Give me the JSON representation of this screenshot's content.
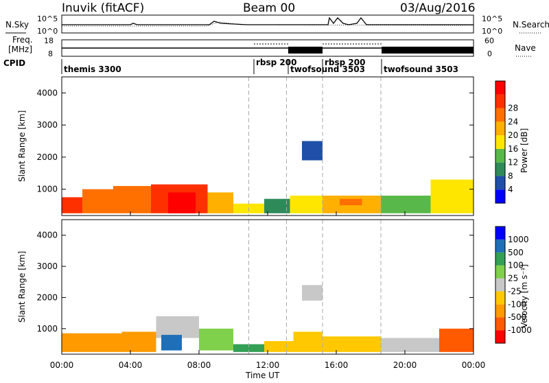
{
  "header": {
    "station": "Inuvik (fitACF)",
    "beam": "Beam 00",
    "date": "03/Aug/2016"
  },
  "top_panel": {
    "left_label": "N.Sky",
    "left_ticks": [
      "10^5",
      "10^0"
    ],
    "right_label": "N.Search",
    "right_ticks": [
      "10^5",
      "10^0"
    ]
  },
  "freq_panel": {
    "left_label_1": "Freq.",
    "left_label_2": "[MHz]",
    "left_ticks": [
      "18",
      "8"
    ],
    "right_label": "Nave",
    "right_ticks": [
      "60",
      "0"
    ]
  },
  "cpid": {
    "label": "CPID",
    "segments": [
      {
        "name": "themis 3300",
        "start": 0,
        "end": 13.1
      },
      {
        "name": "rbsp 200",
        "start": 10.9,
        "end": 13.1
      },
      {
        "name": "twofsound 3503",
        "start": 13.1,
        "end": 15.2
      },
      {
        "name": "rbsp 200",
        "start": 15.2,
        "end": 18.6
      },
      {
        "name": "twofsound 3503",
        "start": 18.6,
        "end": 24
      }
    ]
  },
  "colors": {
    "power": [
      "#0000ff",
      "#1f4fa8",
      "#2f8a5a",
      "#59b84a",
      "#ffe600",
      "#ffb000",
      "#ff7000",
      "#ff3000",
      "#ff0000"
    ],
    "velocity": [
      "#ff0000",
      "#ff5a00",
      "#ff9a00",
      "#ffc800",
      "#c8c8c8",
      "#7fd04a",
      "#33a055",
      "#1f6fb8",
      "#0000ff"
    ]
  },
  "chart_data": [
    {
      "type": "heatmap",
      "name": "power",
      "xlabel": "",
      "ylabel": "Slant Range [km]",
      "xlim": [
        0,
        24
      ],
      "ylim": [
        180,
        4500
      ],
      "yticks": [
        "1000",
        "2000",
        "3000",
        "4000"
      ],
      "colorbar": {
        "label": "Power [dB]",
        "ticks": [
          "4",
          "8",
          "12",
          "16",
          "20",
          "24",
          "28"
        ]
      },
      "bands": [
        {
          "x": [
            0,
            1.2
          ],
          "y": [
            250,
            750
          ],
          "level": 7
        },
        {
          "x": [
            1.2,
            3.0
          ],
          "y": [
            250,
            1000
          ],
          "level": 6
        },
        {
          "x": [
            3.0,
            5.2
          ],
          "y": [
            250,
            1100
          ],
          "level": 6
        },
        {
          "x": [
            5.2,
            8.5
          ],
          "y": [
            250,
            1150
          ],
          "level": 7
        },
        {
          "x": [
            6.2,
            7.8
          ],
          "y": [
            250,
            900
          ],
          "level": 8
        },
        {
          "x": [
            8.5,
            10.0
          ],
          "y": [
            250,
            900
          ],
          "level": 5
        },
        {
          "x": [
            10.0,
            11.8
          ],
          "y": [
            250,
            550
          ],
          "level": 4
        },
        {
          "x": [
            11.8,
            13.3
          ],
          "y": [
            250,
            700
          ],
          "level": 2
        },
        {
          "x": [
            13.3,
            15.2
          ],
          "y": [
            250,
            800
          ],
          "level": 4
        },
        {
          "x": [
            15.2,
            18.6
          ],
          "y": [
            250,
            800
          ],
          "level": 5
        },
        {
          "x": [
            16.2,
            17.5
          ],
          "y": [
            500,
            700
          ],
          "level": 6
        },
        {
          "x": [
            18.6,
            21.5
          ],
          "y": [
            250,
            800
          ],
          "level": 3
        },
        {
          "x": [
            21.5,
            24
          ],
          "y": [
            250,
            1300
          ],
          "level": 4
        },
        {
          "x": [
            14.0,
            15.2
          ],
          "y": [
            1900,
            2500
          ],
          "level": 1
        }
      ]
    },
    {
      "type": "heatmap",
      "name": "velocity",
      "xlabel": "Time UT",
      "ylabel": "Slant Range [km]",
      "xlim": [
        0,
        24
      ],
      "ylim": [
        180,
        4500
      ],
      "xticks": [
        "00:00",
        "04:00",
        "08:00",
        "12:00",
        "16:00",
        "20:00",
        "00:00"
      ],
      "yticks": [
        "1000",
        "2000",
        "3000",
        "4000"
      ],
      "colorbar": {
        "label": "Velocity [m s⁻¹]",
        "ticks": [
          "-1000",
          "-500",
          "-100",
          "-25",
          "25",
          "100",
          "500",
          "1000"
        ]
      },
      "bands": [
        {
          "x": [
            0,
            3.5
          ],
          "y": [
            250,
            850
          ],
          "level": 2
        },
        {
          "x": [
            3.5,
            5.5
          ],
          "y": [
            250,
            900
          ],
          "level": 2
        },
        {
          "x": [
            5.5,
            8.0
          ],
          "y": [
            700,
            1400
          ],
          "level": 4
        },
        {
          "x": [
            5.8,
            7.0
          ],
          "y": [
            300,
            800
          ],
          "level": 7
        },
        {
          "x": [
            8.0,
            10.0
          ],
          "y": [
            300,
            1000
          ],
          "level": 5
        },
        {
          "x": [
            10.0,
            11.8
          ],
          "y": [
            250,
            500
          ],
          "level": 6
        },
        {
          "x": [
            11.8,
            13.5
          ],
          "y": [
            250,
            600
          ],
          "level": 3
        },
        {
          "x": [
            13.5,
            15.2
          ],
          "y": [
            250,
            900
          ],
          "level": 3
        },
        {
          "x": [
            15.2,
            18.6
          ],
          "y": [
            250,
            750
          ],
          "level": 3
        },
        {
          "x": [
            18.6,
            22.0
          ],
          "y": [
            250,
            700
          ],
          "level": 4
        },
        {
          "x": [
            22.0,
            24
          ],
          "y": [
            250,
            1000
          ],
          "level": 1
        },
        {
          "x": [
            14.0,
            15.2
          ],
          "y": [
            1900,
            2400
          ],
          "level": 4
        }
      ]
    }
  ]
}
